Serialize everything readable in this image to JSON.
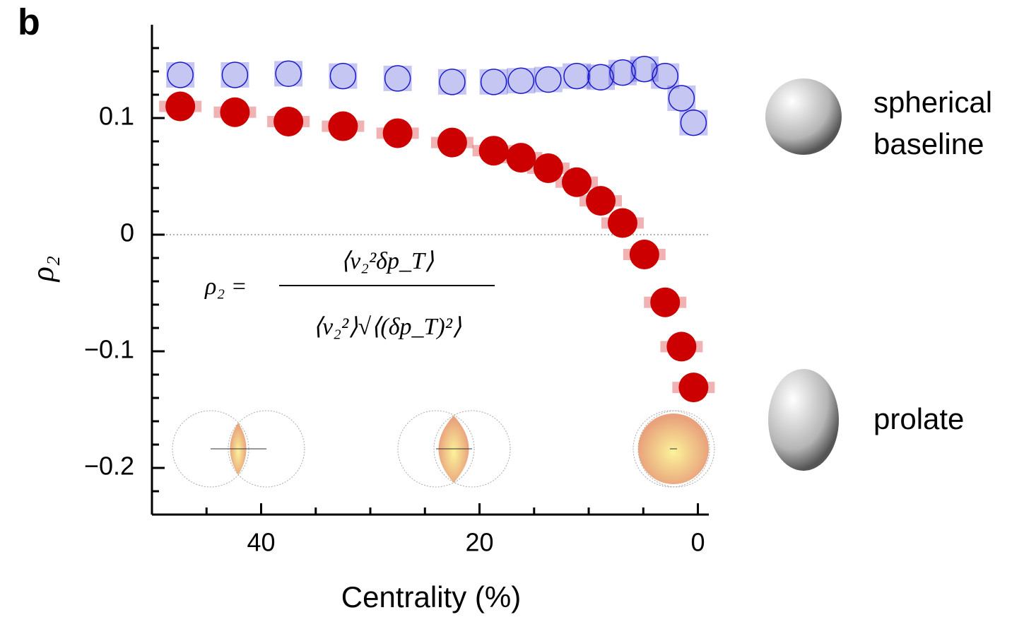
{
  "chart_data": {
    "type": "scatter",
    "panel_label": "b",
    "xlabel": "Centrality (%)",
    "ylabel": "ρ₂",
    "xlim": [
      50,
      -1
    ],
    "ylim": [
      -0.24,
      0.18
    ],
    "xticks": [
      40,
      20,
      0
    ],
    "x_minor_ticks": [
      45,
      35,
      30,
      25,
      15,
      10,
      5
    ],
    "yticks": [
      {
        "value": 0.1,
        "label": "0.1"
      },
      0,
      {
        "value": -0.1,
        "label": "−0.1"
      },
      {
        "value": -0.2,
        "label": "−0.2"
      }
    ],
    "y_minor_ticks": [
      0.16,
      0.14,
      0.12,
      0.08,
      0.06,
      0.04,
      0.02,
      -0.02,
      -0.04,
      -0.06,
      -0.08,
      -0.12,
      -0.14,
      -0.16,
      -0.18,
      -0.22
    ],
    "reference_line": 0,
    "x": [
      47.4,
      42.4,
      37.5,
      32.5,
      27.5,
      22.5,
      18.7,
      16.2,
      13.7,
      11.1,
      8.9,
      6.9,
      4.9,
      3.0,
      1.5,
      0.4
    ],
    "series": [
      {
        "name": "spherical baseline",
        "color": "#1a1acc",
        "filled": false,
        "values": [
          0.137,
          0.137,
          0.138,
          0.136,
          0.134,
          0.131,
          0.131,
          0.132,
          0.133,
          0.136,
          0.135,
          0.139,
          0.142,
          0.136,
          0.117,
          0.096
        ]
      },
      {
        "name": "prolate",
        "color": "#cc0000",
        "filled": true,
        "values": [
          0.11,
          0.105,
          0.097,
          0.093,
          0.087,
          0.079,
          0.072,
          0.066,
          0.057,
          0.045,
          0.029,
          0.01,
          -0.017,
          -0.058,
          -0.096,
          -0.131
        ]
      }
    ],
    "shape_labels": [
      [
        "spherical",
        "baseline"
      ],
      [
        "prolate"
      ]
    ],
    "formula": {
      "lhs": "ρ₂ =",
      "numerator": "⟨v₂²δp_T⟩",
      "denominator": "⟨v₂²⟩√⟨(δp_T)²⟩"
    }
  }
}
